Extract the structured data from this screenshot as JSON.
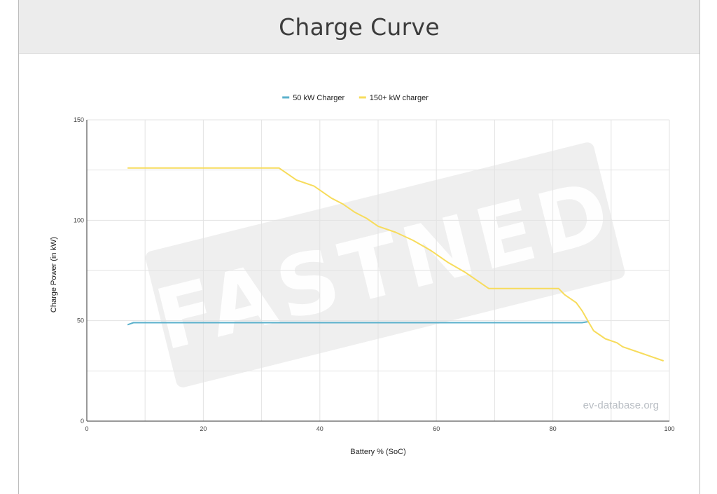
{
  "header": {
    "title": "Charge Curve"
  },
  "watermark": {
    "text": "FASTNED",
    "source": "ev-database.org"
  },
  "colors": {
    "series_50": "#5bb1cc",
    "series_150": "#f7dc5c",
    "grid": "#e3e3e3",
    "axis": "#333333"
  },
  "chart_data": {
    "type": "line",
    "title": "",
    "xlabel": "Battery % (SoC)",
    "ylabel": "Charge Power (in kW)",
    "xlim": [
      0,
      100
    ],
    "ylim": [
      0,
      150
    ],
    "x_ticks": [
      0,
      20,
      40,
      60,
      80,
      100
    ],
    "y_ticks": [
      0,
      50,
      100,
      150
    ],
    "grid": true,
    "legend": "top-center",
    "series": [
      {
        "name": "50 kW Charger",
        "color": "#5bb1cc",
        "points": [
          [
            7,
            48
          ],
          [
            8,
            49
          ],
          [
            20,
            49
          ],
          [
            40,
            49
          ],
          [
            60,
            49
          ],
          [
            80,
            49
          ],
          [
            85,
            49
          ],
          [
            86,
            49.5
          ]
        ]
      },
      {
        "name": "150+ kW charger",
        "color": "#f7dc5c",
        "points": [
          [
            7,
            126
          ],
          [
            20,
            126
          ],
          [
            33,
            126
          ],
          [
            36,
            120
          ],
          [
            39,
            117
          ],
          [
            42,
            111
          ],
          [
            44,
            108
          ],
          [
            46,
            104
          ],
          [
            48,
            101
          ],
          [
            50,
            97
          ],
          [
            53,
            94
          ],
          [
            56,
            90
          ],
          [
            59,
            85
          ],
          [
            62,
            79
          ],
          [
            65,
            74
          ],
          [
            67,
            70
          ],
          [
            69,
            66
          ],
          [
            72,
            66
          ],
          [
            76,
            66
          ],
          [
            81,
            66
          ],
          [
            82,
            63
          ],
          [
            84,
            59
          ],
          [
            85,
            55
          ],
          [
            86,
            50
          ],
          [
            87,
            45
          ],
          [
            89,
            41
          ],
          [
            91,
            39
          ],
          [
            92,
            37
          ],
          [
            95,
            34
          ],
          [
            99,
            30
          ]
        ]
      }
    ]
  }
}
